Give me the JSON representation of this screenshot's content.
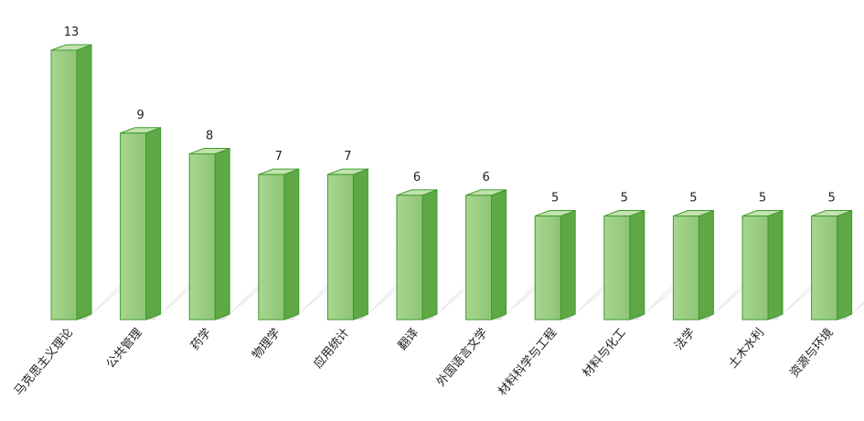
{
  "chart_data": {
    "type": "bar",
    "categories": [
      "马克思主义理论",
      "公共管理",
      "药学",
      "物理学",
      "应用统计",
      "翻译",
      "外国语言文学",
      "材料科学与工程",
      "材料与化工",
      "法学",
      "土木水利",
      "资源与环境"
    ],
    "values": [
      13,
      9,
      8,
      7,
      7,
      6,
      6,
      5,
      5,
      5,
      5,
      5
    ],
    "title": "",
    "xlabel": "",
    "ylabel": "",
    "ylim": [
      0,
      13
    ],
    "grid": false,
    "legend": "none",
    "colors": {
      "front": "#9ccc84",
      "side": "#5ea845",
      "top": "#c3e2ae",
      "edge": "#3e9a2e",
      "shadow": "#d6d6d6"
    }
  }
}
